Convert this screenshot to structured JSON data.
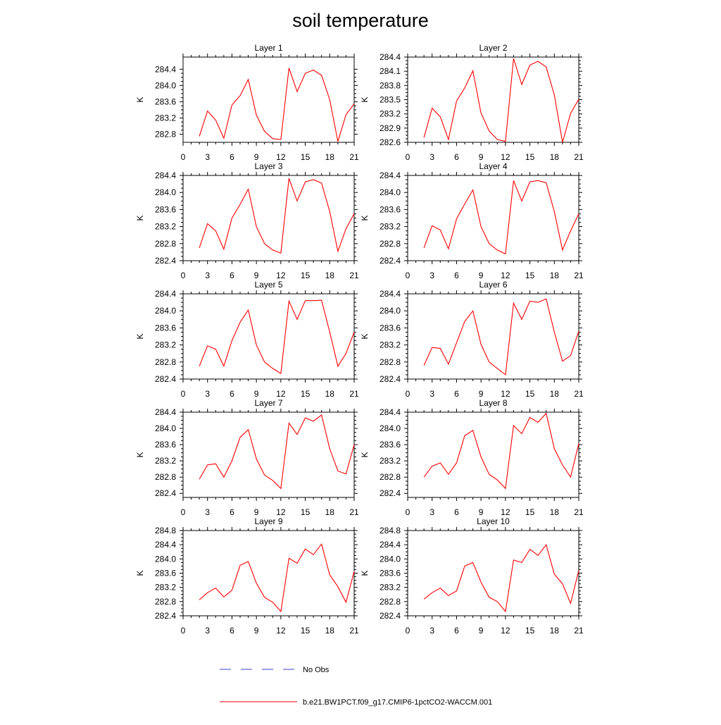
{
  "title": "soil temperature",
  "colors": {
    "model_line": "#ff0000",
    "obs_line": "#3c3cd2",
    "axis": "#000000"
  },
  "legend": {
    "entries": [
      {
        "label": "No Obs",
        "style": "dashed",
        "color": "#3c3cd2"
      },
      {
        "label": "b.e21.BW1PCT.f09_g17.CMIP6-1pctCO2-WACCM.001",
        "style": "solid",
        "color": "#ff0000"
      }
    ]
  },
  "chart_data": [
    {
      "type": "line",
      "title": "Layer 1",
      "ylabel": "K",
      "xlim": [
        0,
        21
      ],
      "xticks": [
        0,
        3,
        6,
        9,
        12,
        15,
        18,
        21
      ],
      "ylim": [
        282.6,
        284.7
      ],
      "yticks": [
        282.8,
        283.2,
        283.6,
        284.0,
        284.4
      ],
      "ytick_labels": [
        "282.8",
        "283.2",
        "283.6",
        "284.0",
        "284.4"
      ],
      "series": [
        {
          "name": "b.e21.BW1PCT.f09_g17.CMIP6-1pctCO2-WACCM.001",
          "x": [
            2,
            3,
            4,
            5,
            6,
            7,
            8,
            9,
            10,
            11,
            12,
            13,
            14,
            15,
            16,
            17,
            18,
            19,
            20,
            21
          ],
          "values": [
            282.75,
            283.37,
            283.15,
            282.7,
            283.52,
            283.75,
            284.15,
            283.27,
            282.87,
            282.69,
            282.67,
            284.43,
            283.85,
            284.3,
            284.38,
            284.25,
            283.65,
            282.62,
            283.28,
            283.55
          ]
        }
      ]
    },
    {
      "type": "line",
      "title": "Layer 2",
      "ylabel": "K",
      "xlim": [
        0,
        21
      ],
      "xticks": [
        0,
        3,
        6,
        9,
        12,
        15,
        18,
        21
      ],
      "ylim": [
        282.6,
        284.4
      ],
      "yticks": [
        282.6,
        282.9,
        283.2,
        283.5,
        283.8,
        284.1,
        284.4
      ],
      "ytick_labels": [
        "282.6",
        "282.9",
        "283.2",
        "283.5",
        "283.8",
        "284.1",
        "284.4"
      ],
      "series": [
        {
          "name": "b.e21.BW1PCT.f09_g17.CMIP6-1pctCO2-WACCM.001",
          "x": [
            2,
            3,
            4,
            5,
            6,
            7,
            8,
            9,
            10,
            11,
            12,
            13,
            14,
            15,
            16,
            17,
            18,
            19,
            20,
            21
          ],
          "values": [
            282.7,
            283.32,
            283.14,
            282.66,
            283.47,
            283.75,
            284.11,
            283.22,
            282.84,
            282.66,
            282.62,
            284.37,
            283.82,
            284.23,
            284.31,
            284.19,
            283.6,
            282.6,
            283.21,
            283.51
          ]
        }
      ]
    },
    {
      "type": "line",
      "title": "Layer 3",
      "ylabel": "K",
      "xlim": [
        0,
        21
      ],
      "xticks": [
        0,
        3,
        6,
        9,
        12,
        15,
        18,
        21
      ],
      "ylim": [
        282.4,
        284.4
      ],
      "yticks": [
        282.4,
        282.8,
        283.2,
        283.6,
        284.0,
        284.4
      ],
      "ytick_labels": [
        "282.4",
        "282.8",
        "283.2",
        "283.6",
        "284.0",
        "284.4"
      ],
      "series": [
        {
          "name": "b.e21.BW1PCT.f09_g17.CMIP6-1pctCO2-WACCM.001",
          "x": [
            2,
            3,
            4,
            5,
            6,
            7,
            8,
            9,
            10,
            11,
            12,
            13,
            14,
            15,
            16,
            17,
            18,
            19,
            20,
            21
          ],
          "values": [
            282.7,
            283.27,
            283.1,
            282.67,
            283.4,
            283.72,
            284.08,
            283.2,
            282.8,
            282.65,
            282.58,
            284.33,
            283.8,
            284.25,
            284.3,
            284.22,
            283.55,
            282.62,
            283.15,
            283.5
          ]
        }
      ]
    },
    {
      "type": "line",
      "title": "Layer 4",
      "ylabel": "K",
      "xlim": [
        0,
        21
      ],
      "xticks": [
        0,
        3,
        6,
        9,
        12,
        15,
        18,
        21
      ],
      "ylim": [
        282.4,
        284.4
      ],
      "yticks": [
        282.4,
        282.8,
        283.2,
        283.6,
        284.0,
        284.4
      ],
      "ytick_labels": [
        "282.4",
        "282.8",
        "283.2",
        "283.6",
        "284.0",
        "284.4"
      ],
      "series": [
        {
          "name": "b.e21.BW1PCT.f09_g17.CMIP6-1pctCO2-WACCM.001",
          "x": [
            2,
            3,
            4,
            5,
            6,
            7,
            8,
            9,
            10,
            11,
            12,
            13,
            14,
            15,
            16,
            17,
            18,
            19,
            20,
            21
          ],
          "values": [
            282.7,
            283.22,
            283.12,
            282.68,
            283.38,
            283.73,
            284.06,
            283.2,
            282.8,
            282.65,
            282.56,
            284.28,
            283.8,
            284.25,
            284.28,
            284.23,
            283.55,
            282.65,
            283.1,
            283.5
          ]
        }
      ]
    },
    {
      "type": "line",
      "title": "Layer 5",
      "ylabel": "K",
      "xlim": [
        0,
        21
      ],
      "xticks": [
        0,
        3,
        6,
        9,
        12,
        15,
        18,
        21
      ],
      "ylim": [
        282.4,
        284.4
      ],
      "yticks": [
        282.4,
        282.8,
        283.2,
        283.6,
        284.0,
        284.4
      ],
      "ytick_labels": [
        "282.4",
        "282.8",
        "283.2",
        "283.6",
        "284.0",
        "284.4"
      ],
      "series": [
        {
          "name": "b.e21.BW1PCT.f09_g17.CMIP6-1pctCO2-WACCM.001",
          "x": [
            2,
            3,
            4,
            5,
            6,
            7,
            8,
            9,
            10,
            11,
            12,
            13,
            14,
            15,
            16,
            17,
            18,
            19,
            20,
            21
          ],
          "values": [
            282.7,
            283.18,
            283.1,
            282.7,
            283.3,
            283.73,
            284.02,
            283.2,
            282.8,
            282.65,
            282.53,
            284.23,
            283.8,
            284.24,
            284.24,
            284.25,
            283.5,
            282.7,
            283.0,
            283.5
          ]
        }
      ]
    },
    {
      "type": "line",
      "title": "Layer 6",
      "ylabel": "K",
      "xlim": [
        0,
        21
      ],
      "xticks": [
        0,
        3,
        6,
        9,
        12,
        15,
        18,
        21
      ],
      "ylim": [
        282.4,
        284.4
      ],
      "yticks": [
        282.4,
        282.8,
        283.2,
        283.6,
        284.0,
        284.4
      ],
      "ytick_labels": [
        "282.4",
        "282.8",
        "283.2",
        "283.6",
        "284.0",
        "284.4"
      ],
      "series": [
        {
          "name": "b.e21.BW1PCT.f09_g17.CMIP6-1pctCO2-WACCM.001",
          "x": [
            2,
            3,
            4,
            5,
            6,
            7,
            8,
            9,
            10,
            11,
            12,
            13,
            14,
            15,
            16,
            17,
            18,
            19,
            20,
            21
          ],
          "values": [
            282.72,
            283.14,
            283.12,
            282.75,
            283.25,
            283.75,
            284.0,
            283.22,
            282.8,
            282.65,
            282.5,
            284.18,
            283.8,
            284.23,
            284.2,
            284.28,
            283.5,
            282.82,
            282.95,
            283.52
          ]
        }
      ]
    },
    {
      "type": "line",
      "title": "Layer 7",
      "ylabel": "K",
      "xlim": [
        0,
        21
      ],
      "xticks": [
        0,
        3,
        6,
        9,
        12,
        15,
        18,
        21
      ],
      "ylim": [
        282.3,
        284.4
      ],
      "yticks": [
        282.4,
        282.8,
        283.2,
        283.6,
        284.0,
        284.4
      ],
      "ytick_labels": [
        "282.4",
        "282.8",
        "283.2",
        "283.6",
        "284.0",
        "284.4"
      ],
      "series": [
        {
          "name": "b.e21.BW1PCT.f09_g17.CMIP6-1pctCO2-WACCM.001",
          "x": [
            2,
            3,
            4,
            5,
            6,
            7,
            8,
            9,
            10,
            11,
            12,
            13,
            14,
            15,
            16,
            17,
            18,
            19,
            20,
            21
          ],
          "values": [
            282.75,
            283.1,
            283.13,
            282.8,
            283.2,
            283.78,
            283.97,
            283.25,
            282.85,
            282.72,
            282.52,
            284.13,
            283.85,
            284.26,
            284.18,
            284.33,
            283.5,
            282.95,
            282.88,
            283.6
          ]
        }
      ]
    },
    {
      "type": "line",
      "title": "Layer 8",
      "ylabel": "K",
      "xlim": [
        0,
        21
      ],
      "xticks": [
        0,
        3,
        6,
        9,
        12,
        15,
        18,
        21
      ],
      "ylim": [
        282.3,
        284.4
      ],
      "yticks": [
        282.4,
        282.8,
        283.2,
        283.6,
        284.0,
        284.4
      ],
      "ytick_labels": [
        "282.4",
        "282.8",
        "283.2",
        "283.6",
        "284.0",
        "284.4"
      ],
      "series": [
        {
          "name": "b.e21.BW1PCT.f09_g17.CMIP6-1pctCO2-WACCM.001",
          "x": [
            2,
            3,
            4,
            5,
            6,
            7,
            8,
            9,
            10,
            11,
            12,
            13,
            14,
            15,
            16,
            17,
            18,
            19,
            20,
            21
          ],
          "values": [
            282.8,
            283.07,
            283.15,
            282.87,
            283.15,
            283.82,
            283.95,
            283.3,
            282.87,
            282.73,
            282.52,
            284.07,
            283.87,
            284.27,
            284.15,
            284.37,
            283.5,
            283.1,
            282.8,
            283.63
          ]
        }
      ]
    },
    {
      "type": "line",
      "title": "Layer 9",
      "ylabel": "K",
      "xlim": [
        0,
        21
      ],
      "xticks": [
        0,
        3,
        6,
        9,
        12,
        15,
        18,
        21
      ],
      "ylim": [
        282.4,
        284.8
      ],
      "yticks": [
        282.4,
        282.8,
        283.2,
        283.6,
        284.0,
        284.4,
        284.8
      ],
      "ytick_labels": [
        "282.4",
        "282.8",
        "283.2",
        "283.6",
        "284.0",
        "284.4",
        "284.8"
      ],
      "series": [
        {
          "name": "b.e21.BW1PCT.f09_g17.CMIP6-1pctCO2-WACCM.001",
          "x": [
            2,
            3,
            4,
            5,
            6,
            7,
            8,
            9,
            10,
            11,
            12,
            13,
            14,
            15,
            16,
            17,
            18,
            19,
            20,
            21
          ],
          "values": [
            282.85,
            283.05,
            283.18,
            282.93,
            283.12,
            283.82,
            283.93,
            283.32,
            282.92,
            282.78,
            282.52,
            284.02,
            283.88,
            284.28,
            284.12,
            284.42,
            283.55,
            283.22,
            282.78,
            283.65
          ]
        }
      ]
    },
    {
      "type": "line",
      "title": "Layer 10",
      "ylabel": "K",
      "xlim": [
        0,
        21
      ],
      "xticks": [
        0,
        3,
        6,
        9,
        12,
        15,
        18,
        21
      ],
      "ylim": [
        282.4,
        284.8
      ],
      "yticks": [
        282.4,
        282.8,
        283.2,
        283.6,
        284.0,
        284.4,
        284.8
      ],
      "ytick_labels": [
        "282.4",
        "282.8",
        "283.2",
        "283.6",
        "284.0",
        "284.4",
        "284.8"
      ],
      "series": [
        {
          "name": "b.e21.BW1PCT.f09_g17.CMIP6-1pctCO2-WACCM.001",
          "x": [
            2,
            3,
            4,
            5,
            6,
            7,
            8,
            9,
            10,
            11,
            12,
            13,
            14,
            15,
            16,
            17,
            18,
            19,
            20,
            21
          ],
          "values": [
            282.87,
            283.05,
            283.18,
            282.97,
            283.1,
            283.8,
            283.9,
            283.35,
            282.92,
            282.8,
            282.52,
            283.97,
            283.9,
            284.27,
            284.1,
            284.4,
            283.57,
            283.3,
            282.75,
            283.68
          ]
        }
      ]
    }
  ]
}
